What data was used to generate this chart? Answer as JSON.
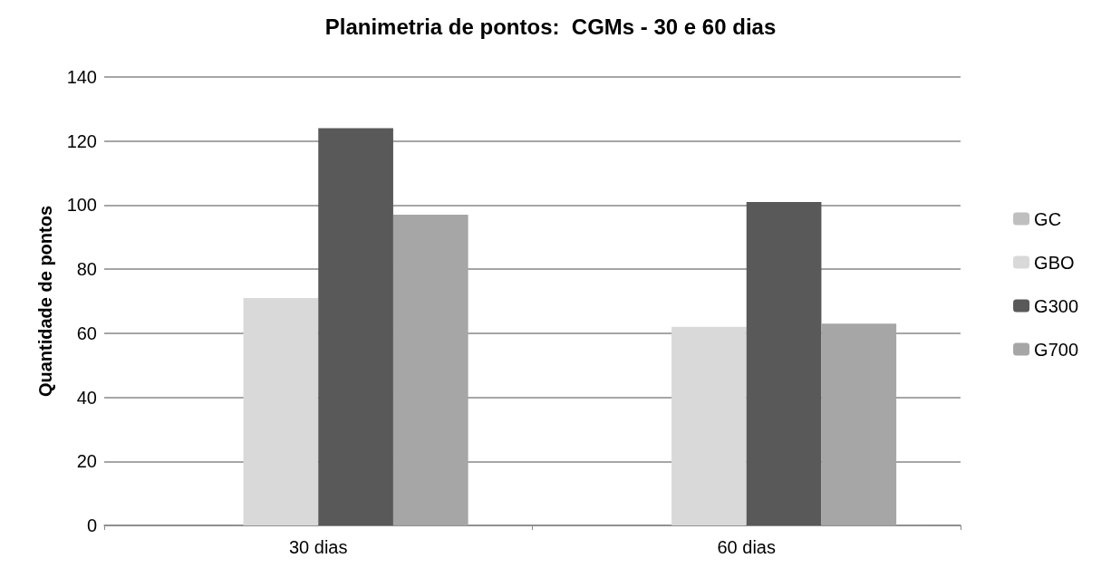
{
  "chart_data": {
    "type": "bar",
    "title": "Planimetria de pontos:  CGMs - 30 e 60 dias",
    "ylabel": "Quantidade de pontos",
    "categories": [
      "30 dias",
      "60 dias"
    ],
    "series": [
      {
        "name": "GC",
        "color": "#bfbfbf",
        "values": [
          null,
          null
        ]
      },
      {
        "name": "GBO",
        "color": "#d9d9d9",
        "values": [
          71,
          62
        ]
      },
      {
        "name": "G300",
        "color": "#595959",
        "values": [
          124,
          101
        ]
      },
      {
        "name": "G700",
        "color": "#a6a6a6",
        "values": [
          97,
          63
        ]
      }
    ],
    "ylim": [
      0,
      140
    ],
    "yticks": [
      0,
      20,
      40,
      60,
      80,
      100,
      120,
      140
    ],
    "grid": "y",
    "legend": "right"
  }
}
